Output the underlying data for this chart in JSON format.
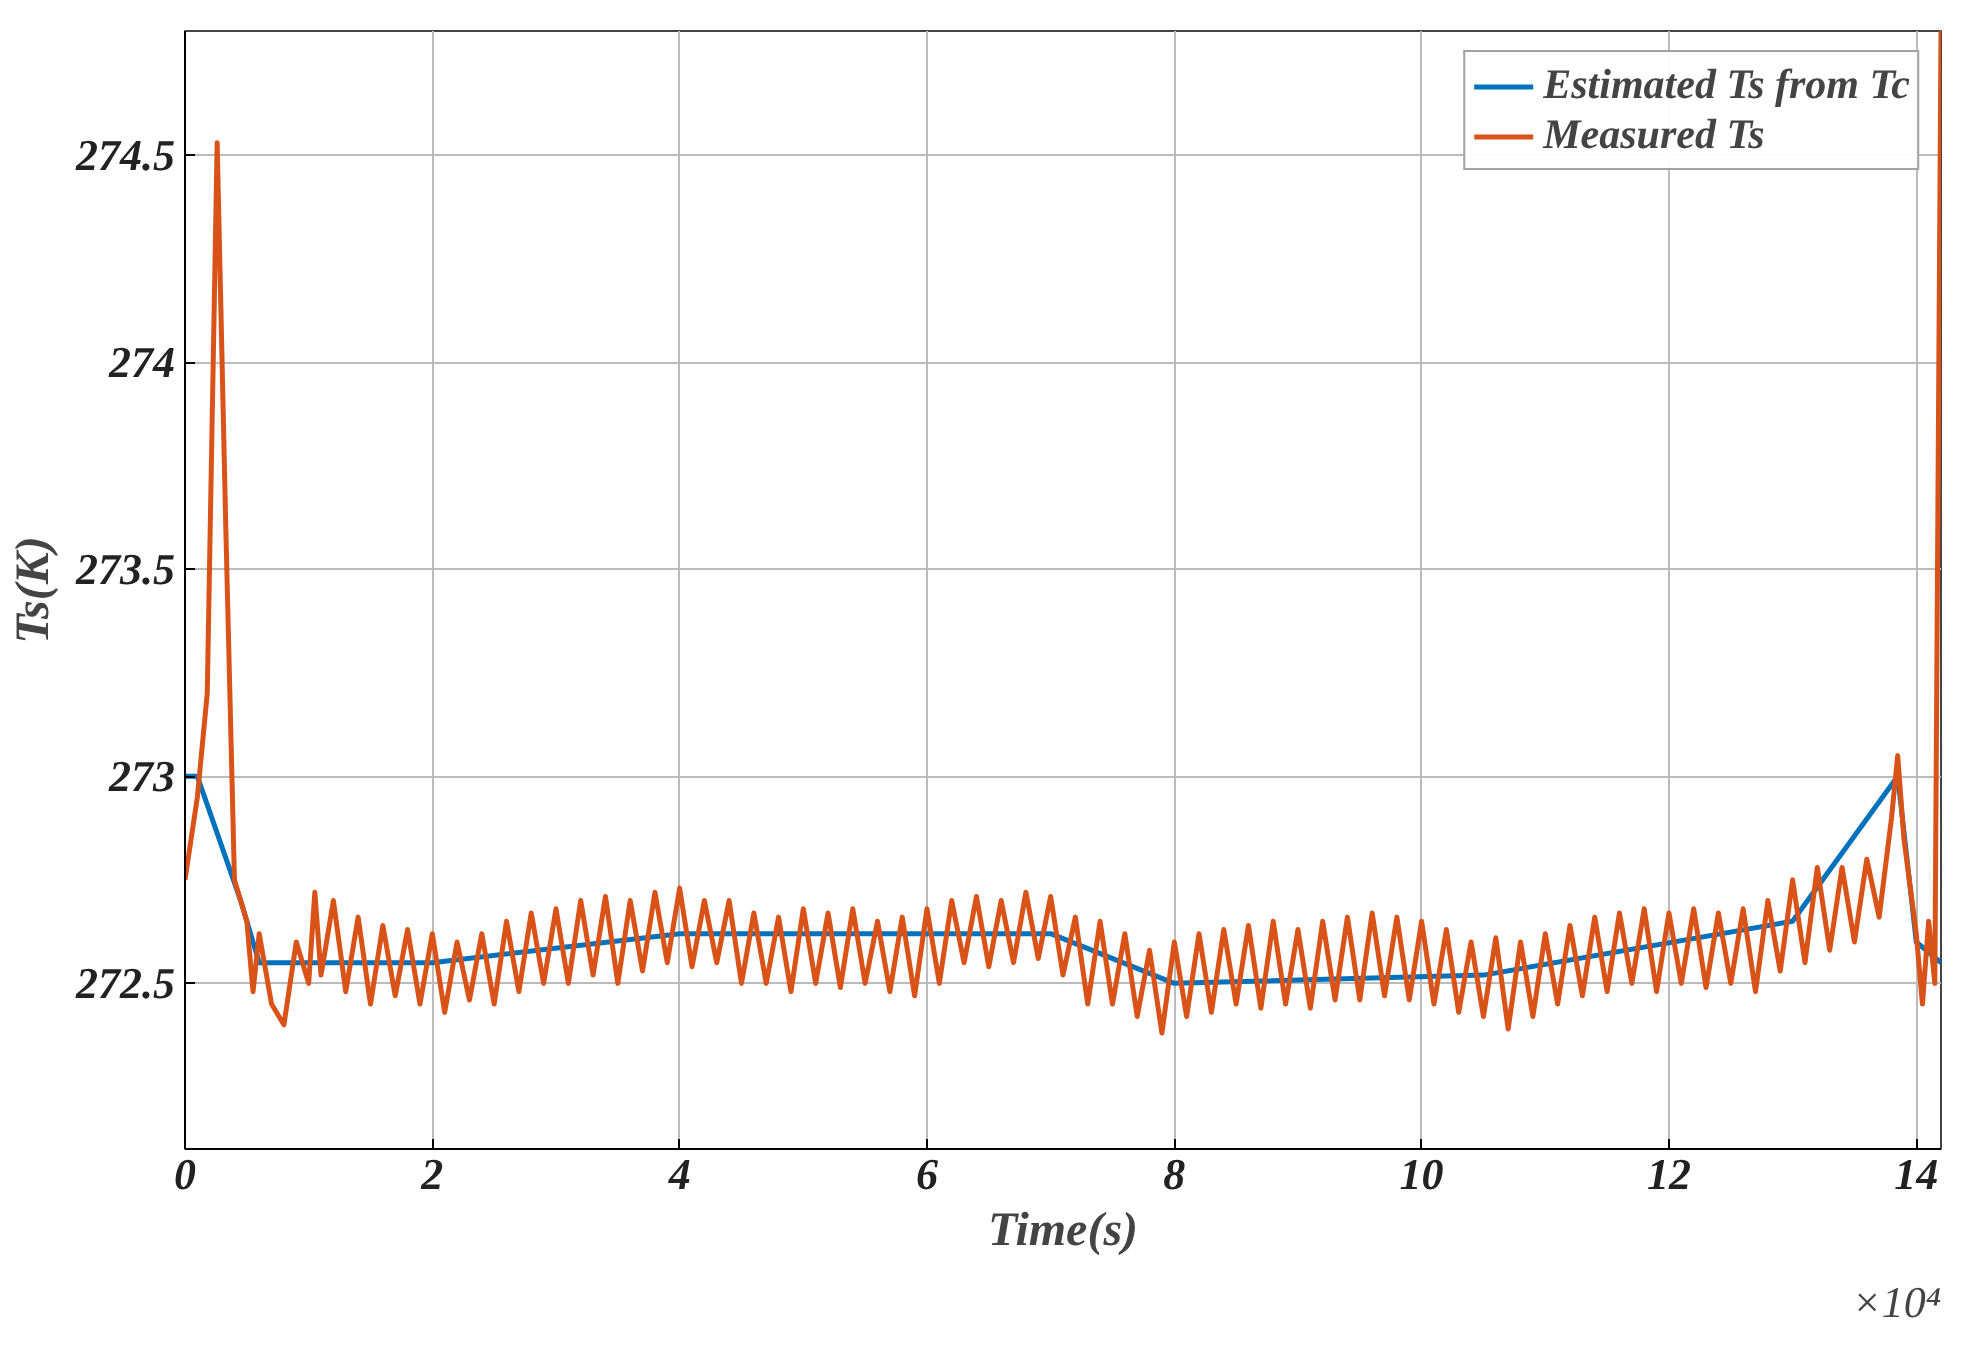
{
  "chart_data": {
    "type": "line",
    "xlabel": "Time(s)",
    "ylabel": "Ts(K)",
    "annotations": [
      "×10⁴"
    ],
    "xlim": [
      0,
      14.2
    ],
    "ylim": [
      272.1,
      274.8
    ],
    "xticks": [
      0,
      2,
      4,
      6,
      8,
      10,
      12,
      14
    ],
    "yticks": [
      272.5,
      273,
      273.5,
      274,
      274.5
    ],
    "grid": true,
    "legend": "top right",
    "line_style": "solid",
    "marker": "none",
    "series": [
      {
        "name": "Estimated Ts from Tc",
        "color": "#0072bd",
        "x": [
          0,
          0.1,
          0.45,
          0.6,
          2,
          4,
          7,
          8,
          10.5,
          13,
          13.85,
          14,
          14.2
        ],
        "values": [
          273.0,
          273.0,
          272.7,
          272.55,
          272.55,
          272.62,
          272.62,
          272.5,
          272.52,
          272.65,
          273.0,
          272.6,
          272.55
        ]
      },
      {
        "name": "Measured Ts",
        "color": "#d95319",
        "x": [
          0,
          0.1,
          0.18,
          0.26,
          0.33,
          0.4,
          0.5,
          0.55,
          0.6,
          0.7,
          0.8,
          0.9,
          1.0,
          1.05,
          1.1,
          1.2,
          1.3,
          1.4,
          1.5,
          1.6,
          1.7,
          1.8,
          1.9,
          2.0,
          2.1,
          2.2,
          2.3,
          2.4,
          2.5,
          2.6,
          2.7,
          2.8,
          2.9,
          3.0,
          3.1,
          3.2,
          3.3,
          3.4,
          3.5,
          3.6,
          3.7,
          3.8,
          3.9,
          4.0,
          4.1,
          4.2,
          4.3,
          4.4,
          4.5,
          4.6,
          4.7,
          4.8,
          4.9,
          5.0,
          5.1,
          5.2,
          5.3,
          5.4,
          5.5,
          5.6,
          5.7,
          5.8,
          5.9,
          6.0,
          6.1,
          6.2,
          6.3,
          6.4,
          6.5,
          6.6,
          6.7,
          6.8,
          6.9,
          7.0,
          7.1,
          7.2,
          7.3,
          7.4,
          7.5,
          7.6,
          7.7,
          7.8,
          7.9,
          8.0,
          8.1,
          8.2,
          8.3,
          8.4,
          8.5,
          8.6,
          8.7,
          8.8,
          8.9,
          9.0,
          9.1,
          9.2,
          9.3,
          9.4,
          9.5,
          9.6,
          9.7,
          9.8,
          9.9,
          10.0,
          10.1,
          10.2,
          10.3,
          10.4,
          10.5,
          10.6,
          10.7,
          10.8,
          10.9,
          11.0,
          11.1,
          11.2,
          11.3,
          11.4,
          11.5,
          11.6,
          11.7,
          11.8,
          11.9,
          12.0,
          12.1,
          12.2,
          12.3,
          12.4,
          12.5,
          12.6,
          12.7,
          12.8,
          12.9,
          13.0,
          13.1,
          13.2,
          13.3,
          13.4,
          13.5,
          13.6,
          13.7,
          13.8,
          13.85,
          13.9,
          14.0,
          14.05,
          14.1,
          14.15,
          14.2
        ],
        "values": [
          272.75,
          272.95,
          273.2,
          274.53,
          273.6,
          272.75,
          272.65,
          272.48,
          272.62,
          272.45,
          272.4,
          272.6,
          272.5,
          272.72,
          272.52,
          272.7,
          272.48,
          272.66,
          272.45,
          272.64,
          272.47,
          272.63,
          272.45,
          272.62,
          272.43,
          272.6,
          272.46,
          272.62,
          272.45,
          272.65,
          272.48,
          272.67,
          272.5,
          272.68,
          272.5,
          272.7,
          272.52,
          272.71,
          272.5,
          272.7,
          272.53,
          272.72,
          272.55,
          272.73,
          272.54,
          272.7,
          272.55,
          272.7,
          272.5,
          272.67,
          272.5,
          272.66,
          272.48,
          272.68,
          272.5,
          272.67,
          272.49,
          272.68,
          272.5,
          272.65,
          272.48,
          272.66,
          272.47,
          272.68,
          272.5,
          272.7,
          272.55,
          272.71,
          272.54,
          272.7,
          272.55,
          272.72,
          272.56,
          272.71,
          272.52,
          272.66,
          272.45,
          272.65,
          272.45,
          272.62,
          272.42,
          272.58,
          272.38,
          272.6,
          272.42,
          272.62,
          272.43,
          272.63,
          272.45,
          272.64,
          272.44,
          272.65,
          272.45,
          272.63,
          272.44,
          272.65,
          272.46,
          272.66,
          272.46,
          272.67,
          272.47,
          272.66,
          272.46,
          272.65,
          272.45,
          272.63,
          272.43,
          272.6,
          272.42,
          272.61,
          272.39,
          272.6,
          272.42,
          272.62,
          272.45,
          272.64,
          272.47,
          272.66,
          272.48,
          272.67,
          272.5,
          272.68,
          272.48,
          272.67,
          272.5,
          272.68,
          272.49,
          272.67,
          272.5,
          272.68,
          272.48,
          272.7,
          272.53,
          272.75,
          272.55,
          272.78,
          272.58,
          272.78,
          272.6,
          272.8,
          272.66,
          272.9,
          273.05,
          272.85,
          272.62,
          272.45,
          272.65,
          272.5,
          274.8
        ]
      }
    ]
  }
}
